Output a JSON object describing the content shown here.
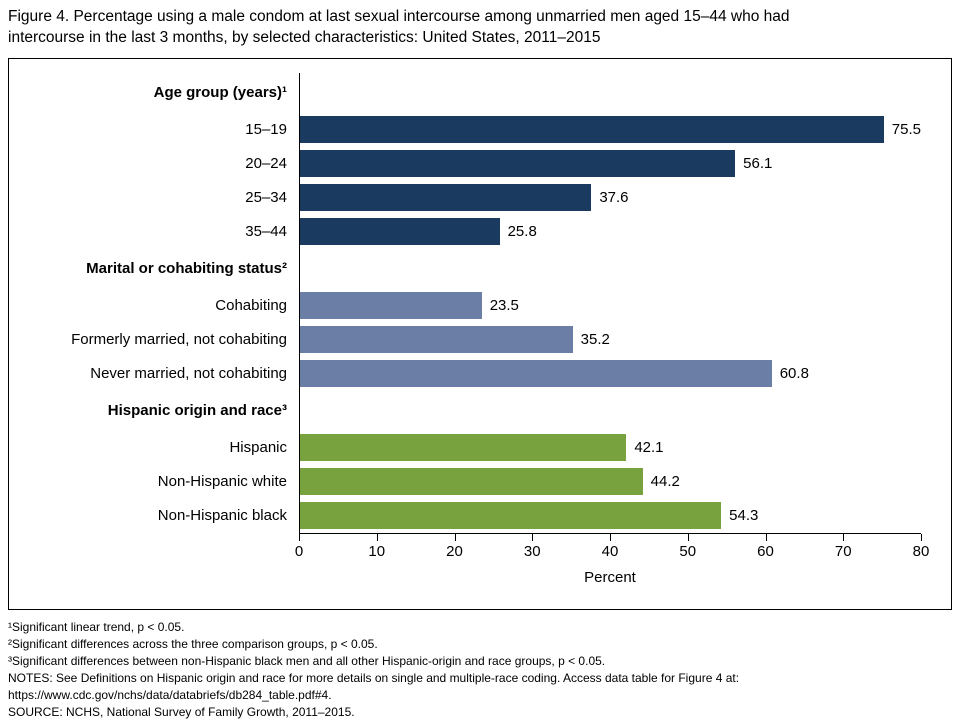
{
  "title": {
    "line1": "Figure 4. Percentage using a male condom at last sexual intercourse among unmarried men aged 15–44 who had",
    "line2": "intercourse in the last 3 months, by selected characteristics: United States, 2011–2015"
  },
  "chart_data": {
    "type": "bar",
    "orientation": "horizontal",
    "xlabel": "Percent",
    "xlim": [
      0,
      80
    ],
    "xticks": [
      0,
      10,
      20,
      30,
      40,
      50,
      60,
      70,
      80
    ],
    "grid": false,
    "groups": [
      {
        "header": "Age group (years)¹",
        "color": "#1b3a60",
        "items": [
          {
            "label": "15–19",
            "value": 75.5
          },
          {
            "label": "20–24",
            "value": 56.1
          },
          {
            "label": "25–34",
            "value": 37.6
          },
          {
            "label": "35–44",
            "value": 25.8
          }
        ]
      },
      {
        "header": "Marital or cohabiting status²",
        "color": "#6b7ea6",
        "items": [
          {
            "label": "Cohabiting",
            "value": 23.5
          },
          {
            "label": "Formerly married, not cohabiting",
            "value": 35.2
          },
          {
            "label": "Never married, not cohabiting",
            "value": 60.8
          }
        ]
      },
      {
        "header": "Hispanic origin and race³",
        "color": "#77a23e",
        "items": [
          {
            "label": "Hispanic",
            "value": 42.1
          },
          {
            "label": "Non-Hispanic white",
            "value": 44.2
          },
          {
            "label": "Non-Hispanic black",
            "value": 54.3
          }
        ]
      }
    ]
  },
  "footnotes": [
    "¹Significant linear trend, p < 0.05.",
    "²Significant differences across the three comparison groups, p < 0.05.",
    "³Significant differences between non-Hispanic black men and all other Hispanic-origin and race groups, p < 0.05.",
    "NOTES: See Definitions on Hispanic origin and race for more details on single and multiple-race coding. Access data table for Figure 4 at:",
    "https://www.cdc.gov/nchs/data/databriefs/db284_table.pdf#4.",
    "SOURCE: NCHS, National Survey of Family Growth, 2011–2015."
  ]
}
